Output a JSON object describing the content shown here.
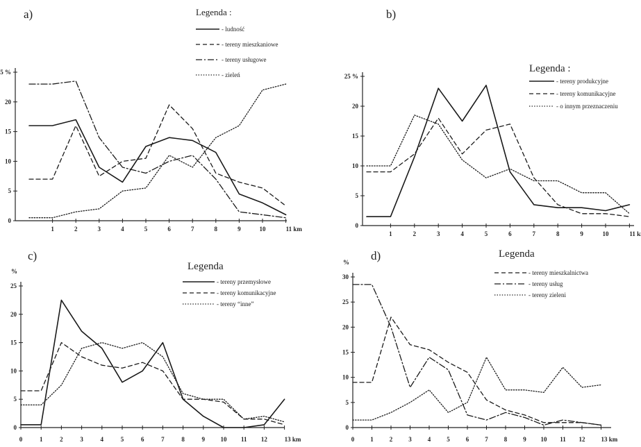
{
  "chart_data": [
    {
      "type": "line",
      "panel_label": "a)",
      "legend_title": "Legenda :",
      "x": [
        0,
        1,
        2,
        3,
        4,
        5,
        6,
        7,
        8,
        9,
        10,
        11
      ],
      "x_tick_labels": [
        "1",
        "2",
        "3",
        "4",
        "5",
        "6",
        "7",
        "8",
        "9",
        "10",
        "11 km"
      ],
      "y_tick_labels": [
        "0",
        "5",
        "10",
        "15",
        "20",
        "25 %"
      ],
      "ylim": [
        0,
        25
      ],
      "grid": false,
      "legend_position": "top",
      "series": [
        {
          "name": "- ludność",
          "style": "solid",
          "values": [
            16,
            16,
            17,
            9,
            6.5,
            12.5,
            14,
            13.5,
            11.5,
            4.5,
            3,
            1
          ]
        },
        {
          "name": "- tereny mieszkaniowe",
          "style": "dashed",
          "values": [
            7,
            7,
            16,
            7.5,
            10,
            10.5,
            19.5,
            15.5,
            8,
            6.5,
            5.5,
            2.5
          ]
        },
        {
          "name": "- tereny usługowe",
          "style": "dashdot",
          "values": [
            23,
            23,
            23.5,
            14,
            9,
            8,
            10,
            11,
            7,
            1.5,
            1,
            0.5
          ]
        },
        {
          "name": "- zieleń",
          "style": "dotted",
          "values": [
            0.5,
            0.5,
            1.5,
            2,
            5,
            5.5,
            11,
            9,
            14,
            16,
            22,
            23
          ]
        }
      ]
    },
    {
      "type": "line",
      "panel_label": "b)",
      "legend_title": "Legenda :",
      "x": [
        0,
        1,
        2,
        3,
        4,
        5,
        6,
        7,
        8,
        9,
        10,
        11
      ],
      "x_tick_labels": [
        "1",
        "2",
        "3",
        "4",
        "5",
        "6",
        "7",
        "8",
        "9",
        "10",
        "11 km"
      ],
      "y_tick_labels": [
        "0",
        "5",
        "10",
        "15",
        "20",
        "25 %"
      ],
      "ylim": [
        0,
        25
      ],
      "grid": false,
      "legend_position": "top-right",
      "series": [
        {
          "name": "- tereny produkcyjne",
          "style": "solid",
          "values": [
            1.5,
            1.5,
            11.5,
            23,
            17.5,
            23.5,
            9,
            3.5,
            3,
            3,
            2.5,
            3.5
          ]
        },
        {
          "name": "- tereny komunikacyjne",
          "style": "dashed",
          "values": [
            9,
            9,
            12,
            18,
            12,
            16,
            17,
            8,
            3.5,
            2,
            2,
            1.5
          ]
        },
        {
          "name": "- o innym przeznaczeniu",
          "style": "dotted",
          "values": [
            10,
            10,
            18.5,
            17,
            11,
            8,
            9.5,
            7.5,
            7.5,
            5.5,
            5.5,
            2
          ]
        }
      ]
    },
    {
      "type": "line",
      "panel_label": "c)",
      "legend_title": "Legenda",
      "y_unit": "%",
      "x": [
        0,
        1,
        2,
        3,
        4,
        5,
        6,
        7,
        8,
        9,
        10,
        11,
        12,
        13
      ],
      "x_tick_labels": [
        "0",
        "1",
        "2",
        "3",
        "4",
        "5",
        "6",
        "7",
        "8",
        "9",
        "10",
        "11",
        "12",
        "13 km"
      ],
      "y_tick_labels": [
        "0",
        "5",
        "10",
        "15",
        "20",
        "25"
      ],
      "ylim": [
        0,
        25
      ],
      "grid": false,
      "legend_position": "top-right",
      "series": [
        {
          "name": "- tereny przemysłowe",
          "style": "solid",
          "values": [
            0.5,
            0.5,
            22.5,
            17,
            14,
            8,
            10,
            15,
            5,
            2,
            0,
            0,
            0.5,
            5
          ]
        },
        {
          "name": "- tereny komunikacyjne",
          "style": "dashed",
          "values": [
            6.5,
            6.5,
            15,
            12.5,
            11,
            10.5,
            11.5,
            10,
            5,
            5,
            4.5,
            1.5,
            1.5,
            0.5
          ]
        },
        {
          "name": "- tereny “inne”",
          "style": "dotted",
          "values": [
            4,
            4,
            7.5,
            14,
            15,
            14,
            15,
            12.5,
            6,
            5,
            5,
            1.5,
            2,
            1
          ]
        }
      ]
    },
    {
      "type": "line",
      "panel_label": "d)",
      "legend_title": "Legenda",
      "y_unit": "%",
      "x": [
        0,
        1,
        2,
        3,
        4,
        5,
        6,
        7,
        8,
        9,
        10,
        11,
        12,
        13
      ],
      "x_tick_labels": [
        "0",
        "1",
        "2",
        "3",
        "4",
        "5",
        "6",
        "7",
        "8",
        "9",
        "10",
        "11",
        "12",
        "13 km"
      ],
      "y_tick_labels": [
        "0",
        "5",
        "10",
        "15",
        "20",
        "25",
        "30"
      ],
      "ylim": [
        0,
        30
      ],
      "grid": false,
      "legend_position": "top-right",
      "series": [
        {
          "name": "- tereny mieszkalnictwa",
          "style": "dashed",
          "values": [
            9,
            9,
            22,
            16.5,
            15.5,
            13,
            11,
            5.5,
            3.5,
            2.5,
            1,
            1,
            1,
            0.5
          ]
        },
        {
          "name": "- tereny usług",
          "style": "dashdot",
          "values": [
            28.5,
            28.5,
            20,
            8,
            14,
            11.5,
            2.5,
            1.5,
            3,
            2,
            0.5,
            1.5,
            1,
            0.5
          ]
        },
        {
          "name": "- tereny zieleni",
          "style": "dotted",
          "values": [
            1.5,
            1.5,
            3,
            5,
            7.5,
            3,
            5,
            14,
            7.5,
            7.5,
            7,
            12,
            8,
            8.5
          ]
        }
      ]
    }
  ]
}
